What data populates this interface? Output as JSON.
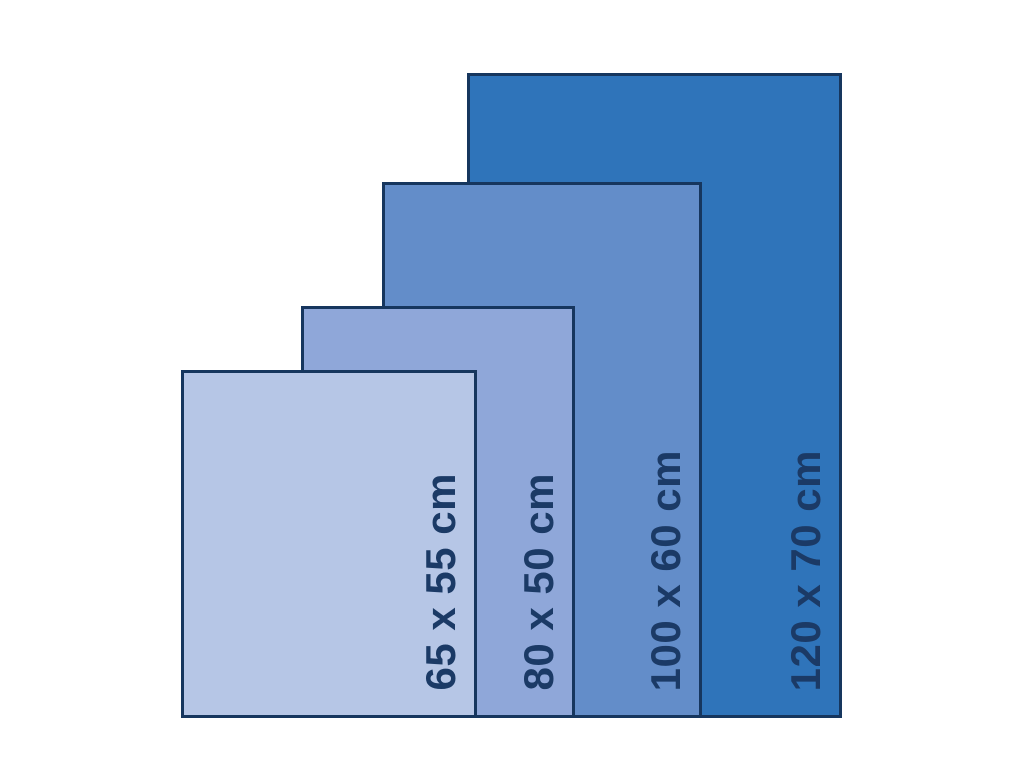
{
  "diagram": {
    "kind": "size-comparison",
    "unit": "cm"
  },
  "sizes": [
    {
      "label": "65 x 55 cm",
      "width_cm": 65,
      "height_cm": 55,
      "fill": "#B6C6E6"
    },
    {
      "label": "80 x 50 cm",
      "width_cm": 80,
      "height_cm": 50,
      "fill": "#8FA7D9"
    },
    {
      "label": "100 x 60 cm",
      "width_cm": 100,
      "height_cm": 60,
      "fill": "#638DC9"
    },
    {
      "label": "120 x 70 cm",
      "width_cm": 120,
      "height_cm": 70,
      "fill": "#2F74BA"
    }
  ],
  "colors": {
    "border": "#16365E",
    "text": "#1B3A66",
    "background": "#FFFFFF"
  }
}
